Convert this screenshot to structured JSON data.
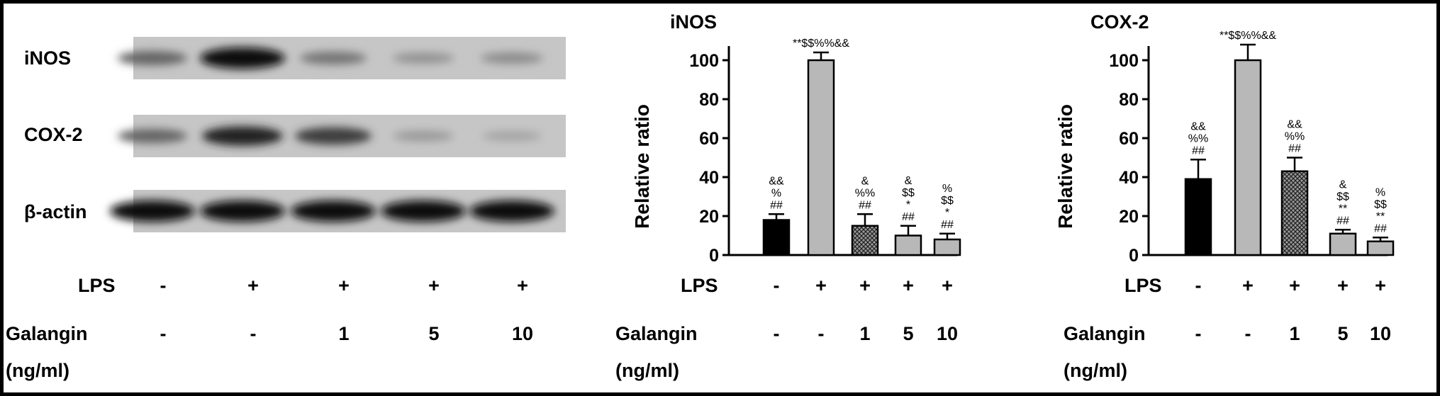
{
  "blot": {
    "rows": [
      "iNOS",
      "COX-2",
      "β-actin"
    ],
    "lps_label": "LPS",
    "lps_signs": [
      "-",
      "+",
      "+",
      "+",
      "+"
    ],
    "galangin_label": "Galangin",
    "galangin_unit": "(ng/ml)",
    "galangin_values": [
      "-",
      "-",
      "1",
      "5",
      "10"
    ],
    "band_intensity": [
      [
        0.45,
        1.0,
        0.35,
        0.18,
        0.22
      ],
      [
        0.45,
        0.85,
        0.7,
        0.14,
        0.08
      ],
      [
        1.0,
        1.0,
        1.0,
        1.0,
        1.0
      ]
    ]
  },
  "chart_data": [
    {
      "type": "bar",
      "title": "iNOS",
      "ylabel": "Relative ratio",
      "xlabel": "",
      "categories": [
        "-/-",
        "+/-",
        "+/1",
        "+/5",
        "+/10"
      ],
      "lps_label": "LPS",
      "lps_signs": [
        "-",
        "+",
        "+",
        "+",
        "+"
      ],
      "galangin_label": "Galangin",
      "galangin_unit": "(ng/ml)",
      "galangin_values": [
        "-",
        "-",
        "1",
        "5",
        "10"
      ],
      "values": [
        18,
        100,
        15,
        10,
        8
      ],
      "errors": [
        3,
        4,
        6,
        5,
        3
      ],
      "ylim": [
        0,
        100
      ],
      "yticks": [
        "0",
        "20",
        "40",
        "60",
        "80",
        "100"
      ],
      "bar_fills": [
        "#000000",
        "#b8b8b8",
        "crosshatch",
        "#b8b8b8",
        "#b8b8b8"
      ],
      "annotations": [
        [
          "&&",
          "%",
          "##"
        ],
        [
          "**$$%%&&"
        ],
        [
          "&",
          "%%",
          "##"
        ],
        [
          "&",
          "$$",
          "*",
          "##"
        ],
        [
          "%",
          "$$",
          "*",
          "##"
        ]
      ]
    },
    {
      "type": "bar",
      "title": "COX-2",
      "ylabel": "Relative ratio",
      "xlabel": "",
      "categories": [
        "-/-",
        "+/-",
        "+/1",
        "+/5",
        "+/10"
      ],
      "lps_label": "LPS",
      "lps_signs": [
        "-",
        "+",
        "+",
        "+",
        "+"
      ],
      "galangin_label": "Galangin",
      "galangin_unit": "(ng/ml)",
      "galangin_values": [
        "-",
        "-",
        "1",
        "5",
        "10"
      ],
      "values": [
        39,
        100,
        43,
        11,
        7
      ],
      "errors": [
        10,
        8,
        7,
        2,
        2
      ],
      "ylim": [
        0,
        100
      ],
      "yticks": [
        "0",
        "20",
        "40",
        "60",
        "80",
        "100"
      ],
      "bar_fills": [
        "#000000",
        "#b8b8b8",
        "crosshatch",
        "#b8b8b8",
        "#b8b8b8"
      ],
      "annotations": [
        [
          "&&",
          "%%",
          "##"
        ],
        [
          "**$$%%&&"
        ],
        [
          "&&",
          "%%",
          "##"
        ],
        [
          "&",
          "$$",
          "**",
          "##"
        ],
        [
          "%",
          "$$",
          "**",
          "##"
        ]
      ]
    }
  ]
}
